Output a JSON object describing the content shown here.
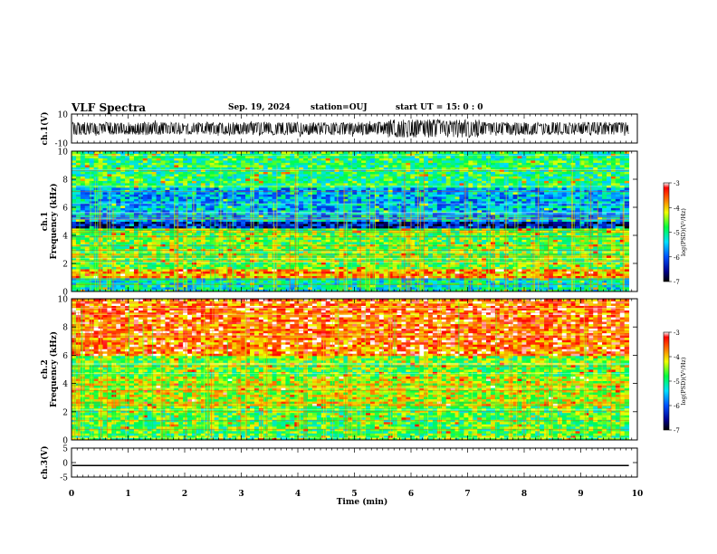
{
  "header": {
    "title": "VLF Spectra",
    "date": "Sep. 19, 2024",
    "station": "station=OUJ",
    "start": "start  UT =   15: 0  : 0"
  },
  "chart_data": [
    {
      "type": "line",
      "panel": "ch1-waveform",
      "ylabel": "ch.1(V)",
      "ylim": [
        -10,
        10
      ],
      "yticks": [
        "10",
        "-10"
      ],
      "xlim": [
        0,
        10
      ],
      "series_color": "#000000",
      "trace_end_min": 9.85,
      "description_values": {
        "baseline": 0,
        "typical_amplitude": 3,
        "peak_amplitude": 6
      }
    },
    {
      "type": "heatmap",
      "panel": "ch1-spectrogram",
      "ylabel": "ch.1\nFrequency (kHz)",
      "ylim": [
        0,
        10
      ],
      "yticks": [
        "0",
        "2",
        "4",
        "6",
        "8",
        "10"
      ],
      "xlim": [
        0,
        10
      ],
      "colorbar": {
        "label": "log(PSD)(V²/Hz)",
        "range": [
          -7,
          -3
        ],
        "ticks": [
          "-3",
          "-4",
          "-5",
          "-6",
          "-7"
        ]
      },
      "bands_kHz": [
        {
          "from": 0,
          "to": 1,
          "level": -5.2
        },
        {
          "from": 1,
          "to": 1.6,
          "level": -3.8
        },
        {
          "from": 1.6,
          "to": 4.5,
          "level": -4.6
        },
        {
          "from": 4.5,
          "to": 5,
          "level": -6.4
        },
        {
          "from": 5,
          "to": 7.5,
          "level": -5.6
        },
        {
          "from": 7.5,
          "to": 10,
          "level": -4.9
        }
      ]
    },
    {
      "type": "heatmap",
      "panel": "ch2-spectrogram",
      "ylabel": "ch.2\nFrequency (kHz)",
      "ylim": [
        0,
        10
      ],
      "yticks": [
        "0",
        "2",
        "4",
        "6",
        "8",
        "10"
      ],
      "xlim": [
        0,
        10
      ],
      "colorbar": {
        "label": "log(PSD)(V²/Hz)",
        "range": [
          -7,
          -3
        ],
        "ticks": [
          "-3",
          "-4",
          "-5",
          "-6",
          "-7"
        ]
      },
      "bands_kHz": [
        {
          "from": 0,
          "to": 2.5,
          "level": -4.7
        },
        {
          "from": 2.5,
          "to": 4.5,
          "level": -4.3
        },
        {
          "from": 4.5,
          "to": 6,
          "level": -4.6
        },
        {
          "from": 6,
          "to": 10,
          "level": -3.6
        }
      ]
    },
    {
      "type": "line",
      "panel": "ch3-waveform",
      "ylabel": "ch.3(V)",
      "ylim": [
        -5,
        5
      ],
      "yticks": [
        "5",
        "0",
        "-5"
      ],
      "xlim": [
        0,
        10
      ],
      "values_constant": -1
    }
  ],
  "xaxis": {
    "label": "Time  (min)",
    "ticks": [
      "0",
      "1",
      "2",
      "3",
      "4",
      "5",
      "6",
      "7",
      "8",
      "9",
      "10"
    ]
  }
}
